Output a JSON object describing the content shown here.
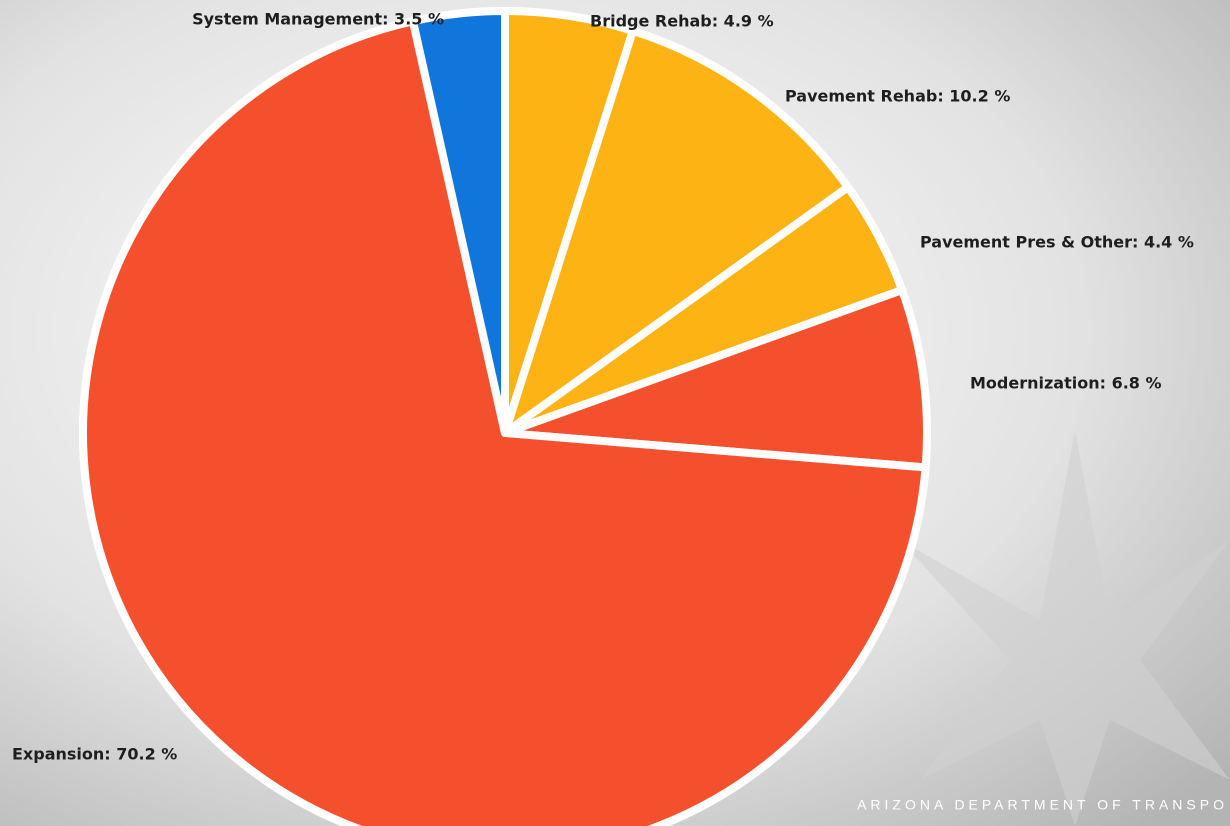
{
  "chart_data": {
    "type": "pie",
    "values": [
      4.9,
      10.2,
      4.4,
      6.8,
      70.2,
      3.5
    ],
    "value_labels": [
      "Bridge Rehab: 4.9 %",
      "Pavement Rehab: 10.2 %",
      "Pavement Pres & Other: 4.4 %",
      "Modernization: 6.8 %",
      "Expansion: 70.2 %",
      "System Management: 3.5 %"
    ],
    "colors": [
      "#fdb314",
      "#fdb314",
      "#fdb314",
      "#f5502d",
      "#f5502d",
      "#1176dc"
    ]
  },
  "footer": "ARIZONA DEPARTMENT OF TRANSPO"
}
